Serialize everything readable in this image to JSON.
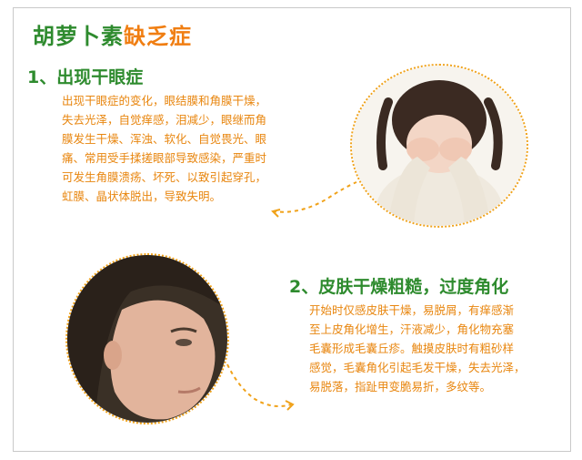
{
  "title": {
    "part_green": "胡萝卜素",
    "part_orange": "缺乏症"
  },
  "section1": {
    "heading": "1、出现干眼症",
    "lines": [
      "出现干眼症的变化，眼结膜和角膜干燥，",
      "失去光泽，自觉痒感，泪减少，眼继而角",
      "膜发生干燥、浑浊、软化、自觉畏光、眼",
      "痛、常用受手揉搓眼部导致感染，严重时",
      "可发生角膜溃疡、坏死、以致引起穿孔，",
      "虹膜、晶状体脱出，导致失明。"
    ]
  },
  "section2": {
    "heading": "2、皮肤干燥粗糙，过度角化",
    "lines": [
      "开始时仅感皮肤干燥，易脱屑，有痒感渐",
      "至上皮角化增生，汗液减少，角化物充塞",
      "毛囊形成毛囊丘疹。触摸皮肤时有粗砂样",
      "感觉，毛囊角化引起毛发干燥，失去光泽，",
      "易脱落，指趾甲变脆易折，多纹等。"
    ]
  },
  "colors": {
    "green": "#2e8b2e",
    "orange": "#f07e12",
    "text_orange": "#e8860f",
    "dotted": "#f0a21a"
  }
}
